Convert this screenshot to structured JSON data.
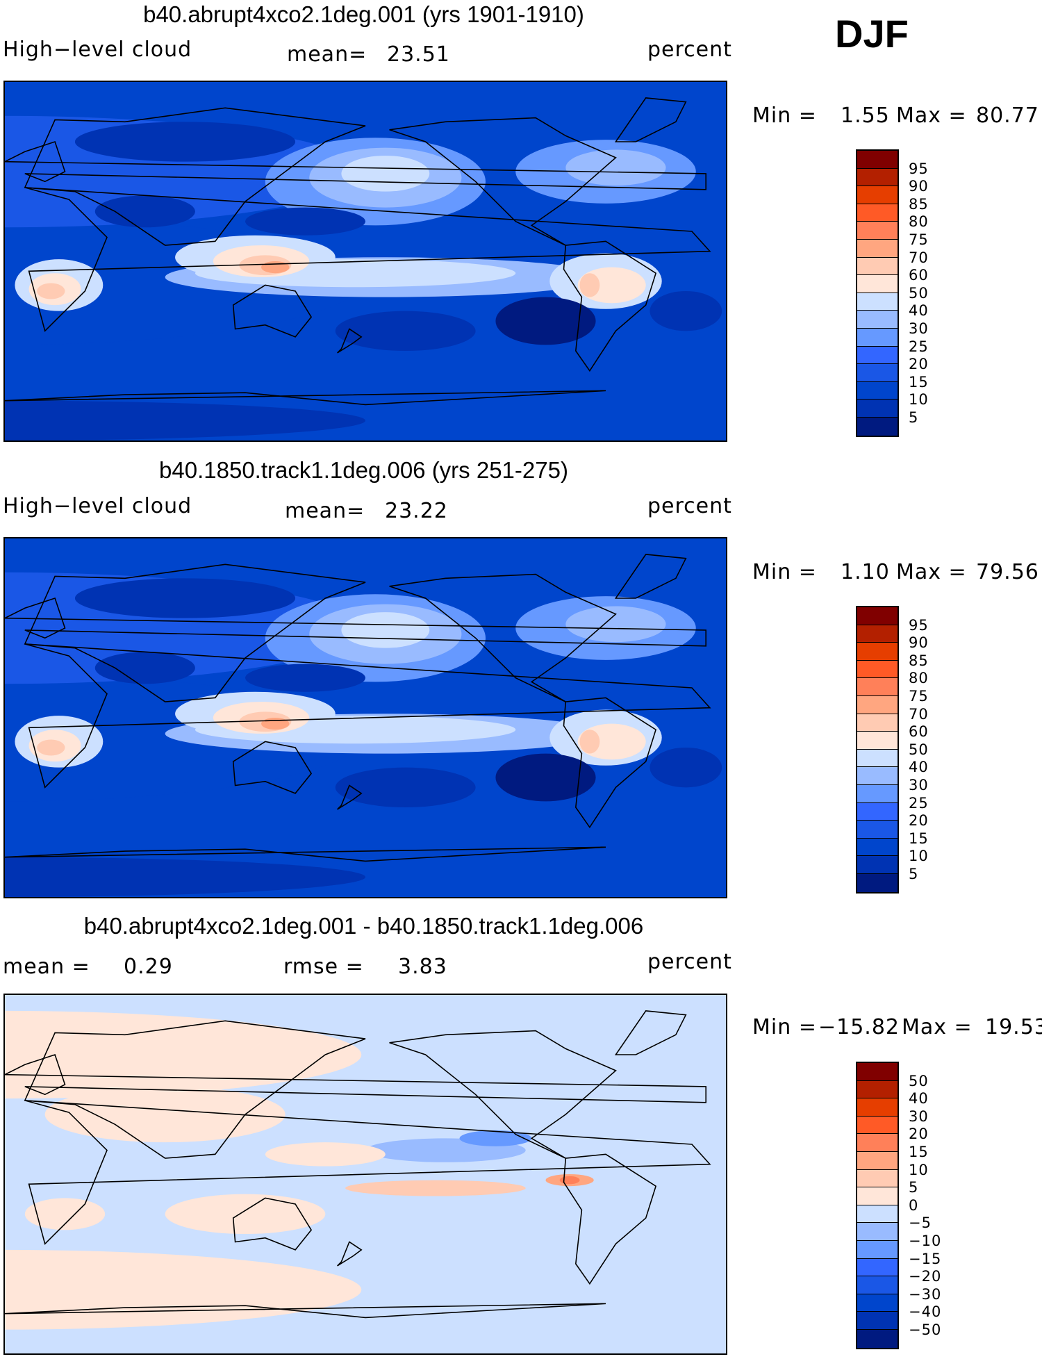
{
  "season": "DJF",
  "colors": {
    "abs_scale": [
      "#001a80",
      "#0033b3",
      "#0045cc",
      "#1a57e6",
      "#3366ff",
      "#6699ff",
      "#99bbff",
      "#cce0ff",
      "#ffe6d9",
      "#ffcbb3",
      "#ffa680",
      "#ff8059",
      "#ff5a26",
      "#e63e00",
      "#b32000",
      "#800000"
    ],
    "diff_scale": [
      "#001a80",
      "#0033b3",
      "#0045cc",
      "#1a57e6",
      "#3366ff",
      "#6699ff",
      "#99bbff",
      "#cce0ff",
      "#ffe6d9",
      "#ffcbb3",
      "#ffa680",
      "#ff8059",
      "#ff5a26",
      "#e63e00",
      "#b32000",
      "#800000"
    ]
  },
  "chart_data": [
    {
      "type": "heatmap",
      "title": "b40.abrupt4xco2.1deg.001 (yrs 1901-1910)",
      "variable": "High−level cloud",
      "units": "percent",
      "mean_label": "mean=",
      "mean": "23.51",
      "min_label": "Min =",
      "min": "1.55",
      "max_label": "Max =",
      "max": "80.77",
      "colorbar_levels": [
        "95",
        "90",
        "85",
        "80",
        "75",
        "70",
        "60",
        "50",
        "40",
        "30",
        "25",
        "20",
        "15",
        "10",
        "5"
      ]
    },
    {
      "type": "heatmap",
      "title": "b40.1850.track1.1deg.006 (yrs 251-275)",
      "variable": "High−level cloud",
      "units": "percent",
      "mean_label": "mean=",
      "mean": "23.22",
      "min_label": "Min =",
      "min": "1.10",
      "max_label": "Max =",
      "max": "79.56",
      "colorbar_levels": [
        "95",
        "90",
        "85",
        "80",
        "75",
        "70",
        "60",
        "50",
        "40",
        "30",
        "25",
        "20",
        "15",
        "10",
        "5"
      ]
    },
    {
      "type": "heatmap",
      "title": "b40.abrupt4xco2.1deg.001 - b40.1850.track1.1deg.006",
      "units": "percent",
      "mean_label": "mean =",
      "mean": "0.29",
      "rmse_label": "rmse =",
      "rmse": "3.83",
      "min_label": "Min =",
      "min": "−15.82",
      "max_label": "Max =",
      "max": "19.53",
      "colorbar_levels": [
        "50",
        "40",
        "30",
        "20",
        "15",
        "10",
        "5",
        "0",
        "−5",
        "−10",
        "−15",
        "−20",
        "−30",
        "−40",
        "−50"
      ]
    }
  ]
}
